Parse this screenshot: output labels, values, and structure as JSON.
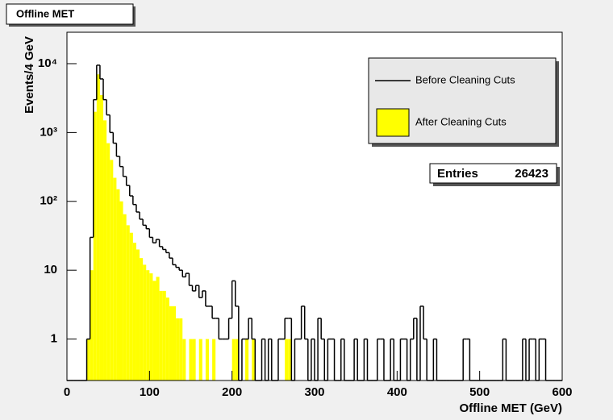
{
  "chart_data": {
    "type": "histogram",
    "title": "Offline MET",
    "x_label": "Offline MET (GeV)",
    "y_label": "Events/4 GeV",
    "log_y": true,
    "grid": false,
    "legend": "top-right",
    "xlim": [
      0,
      600
    ],
    "xticks": [
      0,
      100,
      200,
      300,
      400,
      500,
      600
    ],
    "ylim": [
      0.25,
      28600
    ],
    "yticks": [
      1,
      10,
      {
        "value": 100,
        "label": "10²"
      },
      {
        "value": 1000,
        "label": "10³"
      },
      {
        "value": 10000,
        "label": "10⁴"
      }
    ],
    "stats": {
      "label": "Entries",
      "value": 26423
    },
    "bins": [
      0,
      4,
      8,
      12,
      16,
      20,
      24,
      28,
      32,
      36,
      40,
      44,
      48,
      52,
      56,
      60,
      64,
      68,
      72,
      76,
      80,
      84,
      88,
      92,
      96,
      100,
      104,
      108,
      112,
      116,
      120,
      124,
      128,
      132,
      136,
      140,
      144,
      148,
      152,
      156,
      160,
      164,
      168,
      172,
      176,
      180,
      184,
      188,
      192,
      196,
      200,
      204,
      208,
      212,
      216,
      220,
      224,
      228,
      232,
      236,
      240,
      244,
      248,
      252,
      256,
      260,
      264,
      268,
      272,
      276,
      280,
      284,
      288,
      292,
      296,
      300,
      304,
      308,
      312,
      316,
      320,
      324,
      328,
      332,
      336,
      340,
      344,
      348,
      352,
      356,
      360,
      364,
      368,
      372,
      376,
      380,
      384,
      388,
      392,
      396,
      400,
      404,
      408,
      412,
      416,
      420,
      424,
      428,
      432,
      436,
      440,
      444,
      448,
      452,
      456,
      460,
      464,
      468,
      472,
      476,
      480,
      484,
      488,
      492,
      496,
      500,
      504,
      508,
      512,
      516,
      520,
      524,
      528,
      532,
      536,
      540,
      544,
      548,
      552,
      556,
      560,
      564,
      568,
      572,
      576,
      580,
      584,
      588,
      592,
      596,
      600
    ],
    "series": [
      {
        "name": "After Cleaning Cuts",
        "color": "#ffff00",
        "values": [
          0,
          0,
          0,
          0,
          0,
          0,
          1,
          10,
          2000,
          7000,
          3500,
          1500,
          700,
          400,
          220,
          150,
          100,
          65,
          45,
          35,
          25,
          20,
          15,
          12,
          10,
          9,
          7,
          8,
          5,
          5,
          4,
          3,
          3,
          2,
          2,
          1,
          0,
          1,
          1,
          0,
          1,
          0,
          1,
          0,
          1,
          0,
          0,
          0,
          0,
          0,
          1,
          1,
          0,
          0,
          1,
          0,
          1,
          0,
          0,
          0,
          0,
          0,
          0,
          0,
          0,
          0,
          1,
          1,
          0,
          0,
          0,
          0,
          0,
          0,
          0,
          0,
          0,
          0,
          0,
          0,
          0,
          0,
          0,
          0,
          0,
          0,
          0,
          0,
          0,
          0,
          0,
          0,
          0,
          0,
          0,
          0,
          0,
          0,
          0,
          0,
          0,
          0,
          0,
          0,
          0,
          0,
          0,
          0,
          0,
          0,
          0,
          0,
          0,
          0,
          0,
          0,
          0,
          0,
          0,
          0,
          0,
          0,
          0,
          0,
          0,
          0,
          0,
          0,
          0,
          0,
          0,
          0,
          0,
          0,
          0,
          0,
          0,
          0,
          0,
          0,
          0,
          0,
          0,
          0,
          0,
          0,
          0,
          0,
          0,
          0
        ]
      },
      {
        "name": "Before Cleaning Cuts",
        "color": "#000000",
        "values": [
          0,
          0,
          0,
          0,
          0,
          0,
          1,
          30,
          3000,
          9500,
          6000,
          3000,
          1800,
          1000,
          700,
          450,
          320,
          230,
          170,
          120,
          90,
          70,
          55,
          45,
          40,
          30,
          25,
          28,
          22,
          20,
          18,
          15,
          12,
          11,
          10,
          8,
          9,
          6,
          5,
          6,
          4,
          5,
          3,
          3,
          2,
          2,
          1,
          1,
          1,
          2,
          7,
          3,
          0,
          1,
          1,
          2,
          1,
          0,
          0,
          1,
          0,
          1,
          0,
          0,
          1,
          1,
          2,
          2,
          0,
          1,
          1,
          3,
          1,
          0,
          1,
          0,
          2,
          1,
          0,
          1,
          1,
          0,
          0,
          1,
          0,
          0,
          0,
          1,
          0,
          0,
          1,
          0,
          0,
          0,
          1,
          1,
          0,
          0,
          1,
          0,
          0,
          1,
          1,
          0,
          1,
          2,
          0,
          3,
          1,
          0,
          0,
          1,
          0,
          0,
          0,
          0,
          0,
          0,
          0,
          0,
          1,
          1,
          0,
          0,
          0,
          0,
          0,
          0,
          0,
          0,
          0,
          0,
          1,
          0,
          0,
          0,
          0,
          0,
          1,
          0,
          1,
          1,
          0,
          1,
          1,
          0,
          0,
          0,
          0,
          0
        ]
      }
    ]
  }
}
